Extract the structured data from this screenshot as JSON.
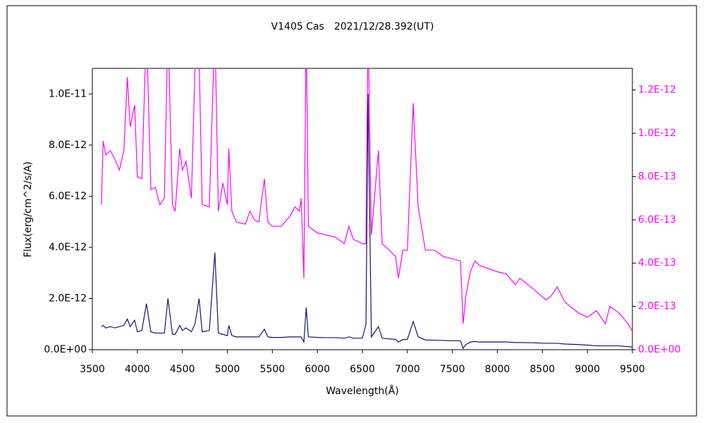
{
  "chart_data": {
    "type": "line",
    "title": "V1405 Cas　2021/12/28.392(UT)",
    "x_label": "Wavelength(Å)",
    "y_label": "Flux(erg/cm^2/s/A)",
    "xlim": [
      3500,
      9500
    ],
    "xticks": [
      3500,
      4000,
      4500,
      5000,
      5500,
      6000,
      6500,
      7000,
      7500,
      8000,
      8500,
      9000,
      9500
    ],
    "ylim": [
      0,
      1.1e-11
    ],
    "yticks": [
      {
        "value": 0,
        "label": "0.0E+00"
      },
      {
        "value": 2e-12,
        "label": "2.0E-12"
      },
      {
        "value": 4e-12,
        "label": "4.0E-12"
      },
      {
        "value": 6e-12,
        "label": "6.0E-12"
      },
      {
        "value": 8e-12,
        "label": "8.0E-12"
      },
      {
        "value": 1e-11,
        "label": "1.0E-11"
      }
    ],
    "y2lim": [
      0,
      1.3e-12
    ],
    "y2ticks": [
      {
        "value": 0,
        "label": "0.0E+00"
      },
      {
        "value": 2e-13,
        "label": "2.0E-13"
      },
      {
        "value": 4e-13,
        "label": "4.0E-13"
      },
      {
        "value": 6e-13,
        "label": "6.0E-13"
      },
      {
        "value": 8e-13,
        "label": "8.0E-13"
      },
      {
        "value": 1e-12,
        "label": "1.0E-12"
      },
      {
        "value": 1.2e-12,
        "label": "1.2E-12"
      }
    ],
    "y2_color": "#ff00ff",
    "x": [
      3600,
      3620,
      3650,
      3700,
      3750,
      3800,
      3850,
      3889,
      3920,
      3970,
      4000,
      4050,
      4101,
      4150,
      4200,
      4250,
      4300,
      4340,
      4390,
      4420,
      4471,
      4500,
      4541,
      4600,
      4640,
      4686,
      4720,
      4800,
      4861,
      4900,
      4950,
      5000,
      5016,
      5050,
      5100,
      5200,
      5250,
      5300,
      5350,
      5411,
      5450,
      5500,
      5600,
      5700,
      5750,
      5800,
      5820,
      5850,
      5876,
      5900,
      6000,
      6100,
      6200,
      6300,
      6350,
      6400,
      6500,
      6540,
      6563,
      6600,
      6678,
      6720,
      6800,
      6870,
      6900,
      6950,
      7000,
      7065,
      7120,
      7200,
      7300,
      7400,
      7500,
      7590,
      7620,
      7650,
      7700,
      7750,
      7800,
      8000,
      8100,
      8200,
      8250,
      8400,
      8542,
      8600,
      8665,
      8750,
      8900,
      9000,
      9100,
      9200,
      9250,
      9350,
      9450,
      9500
    ],
    "series": [
      {
        "color": "#ff00ff",
        "axis": "y2",
        "values": [
          6.7e-13,
          9.65e-13,
          9e-13,
          9.2e-13,
          8.8e-13,
          8.3e-13,
          9.2e-13,
          1.26e-12,
          1.03e-12,
          1.13e-12,
          8e-13,
          7.9e-13,
          1.5e-12,
          7.4e-13,
          7.5e-13,
          6.7e-13,
          7e-13,
          1.5e-12,
          6.7e-13,
          6.4e-13,
          9.3e-13,
          8.3e-13,
          8.7e-13,
          7e-13,
          1.29e-12,
          1.36e-12,
          6.7e-13,
          6.6e-13,
          1.5e-12,
          6.4e-13,
          7.7e-13,
          6.7e-13,
          9.3e-13,
          6.4e-13,
          5.9e-13,
          5.8e-13,
          6.4e-13,
          6e-13,
          5.9e-13,
          7.9e-13,
          5.9e-13,
          5.7e-13,
          5.7e-13,
          6.2e-13,
          6.6e-13,
          6.4e-13,
          7e-13,
          3.3e-13,
          1.5e-12,
          5.7e-13,
          5.4e-13,
          5.3e-13,
          5.2e-13,
          4.9e-13,
          5.7e-13,
          5.1e-13,
          4.9e-13,
          4.9e-13,
          1.5e-12,
          5.3e-13,
          9.2e-13,
          4.9e-13,
          4.6e-13,
          4.3e-13,
          3.3e-13,
          4.6e-13,
          4.6e-13,
          1.14e-12,
          6.6e-13,
          4.6e-13,
          4.6e-13,
          4.3e-13,
          4.2e-13,
          4.1e-13,
          1.2e-13,
          2.5e-13,
          3.6e-13,
          4.1e-13,
          3.9e-13,
          3.6e-13,
          3.5e-13,
          3e-13,
          3.3e-13,
          2.8e-13,
          2.3e-13,
          2.5e-13,
          2.9e-13,
          2.2e-13,
          1.7e-13,
          1.5e-13,
          1.8e-13,
          1.2e-13,
          2e-13,
          1.7e-13,
          1.2e-13,
          8.5e-14
        ]
      },
      {
        "color": "#14146e",
        "values": [
          9e-13,
          9.5e-13,
          8.5e-13,
          9e-13,
          8.5e-13,
          9e-13,
          9.5e-13,
          1.2e-12,
          9e-13,
          1.15e-12,
          7e-13,
          7.5e-13,
          1.8e-12,
          7e-13,
          6.5e-13,
          6.5e-13,
          6.5e-13,
          2e-12,
          6e-13,
          6e-13,
          9.5e-13,
          7.5e-13,
          8.5e-13,
          7e-13,
          1e-12,
          2e-12,
          7e-13,
          7.5e-13,
          3.8e-12,
          6.5e-13,
          6e-13,
          5.5e-13,
          9.5e-13,
          5.5e-13,
          5e-13,
          5e-13,
          5e-13,
          5e-13,
          5e-13,
          8e-13,
          5e-13,
          4.8e-13,
          4.8e-13,
          5e-13,
          5e-13,
          5e-13,
          5e-13,
          3e-13,
          1.65e-12,
          5e-13,
          4.8e-13,
          4.7e-13,
          4.7e-13,
          4.5e-13,
          5e-13,
          4.5e-13,
          4.5e-13,
          1e-12,
          1e-11,
          5e-13,
          9e-13,
          4.5e-13,
          4.2e-13,
          4e-13,
          3e-13,
          4e-13,
          4e-13,
          1.1e-12,
          5e-13,
          3.8e-13,
          3.7e-13,
          3.6e-13,
          3.5e-13,
          3.5e-13,
          5e-14,
          2e-13,
          3e-13,
          3.2e-13,
          3e-13,
          3e-13,
          3e-13,
          2.8e-13,
          2.8e-13,
          2.7e-13,
          2.5e-13,
          2.5e-13,
          2.5e-13,
          2.2e-13,
          2e-13,
          1.8e-13,
          1.5e-13,
          1.5e-13,
          1.5e-13,
          1.5e-13,
          1.2e-13,
          1e-13
        ]
      }
    ]
  }
}
